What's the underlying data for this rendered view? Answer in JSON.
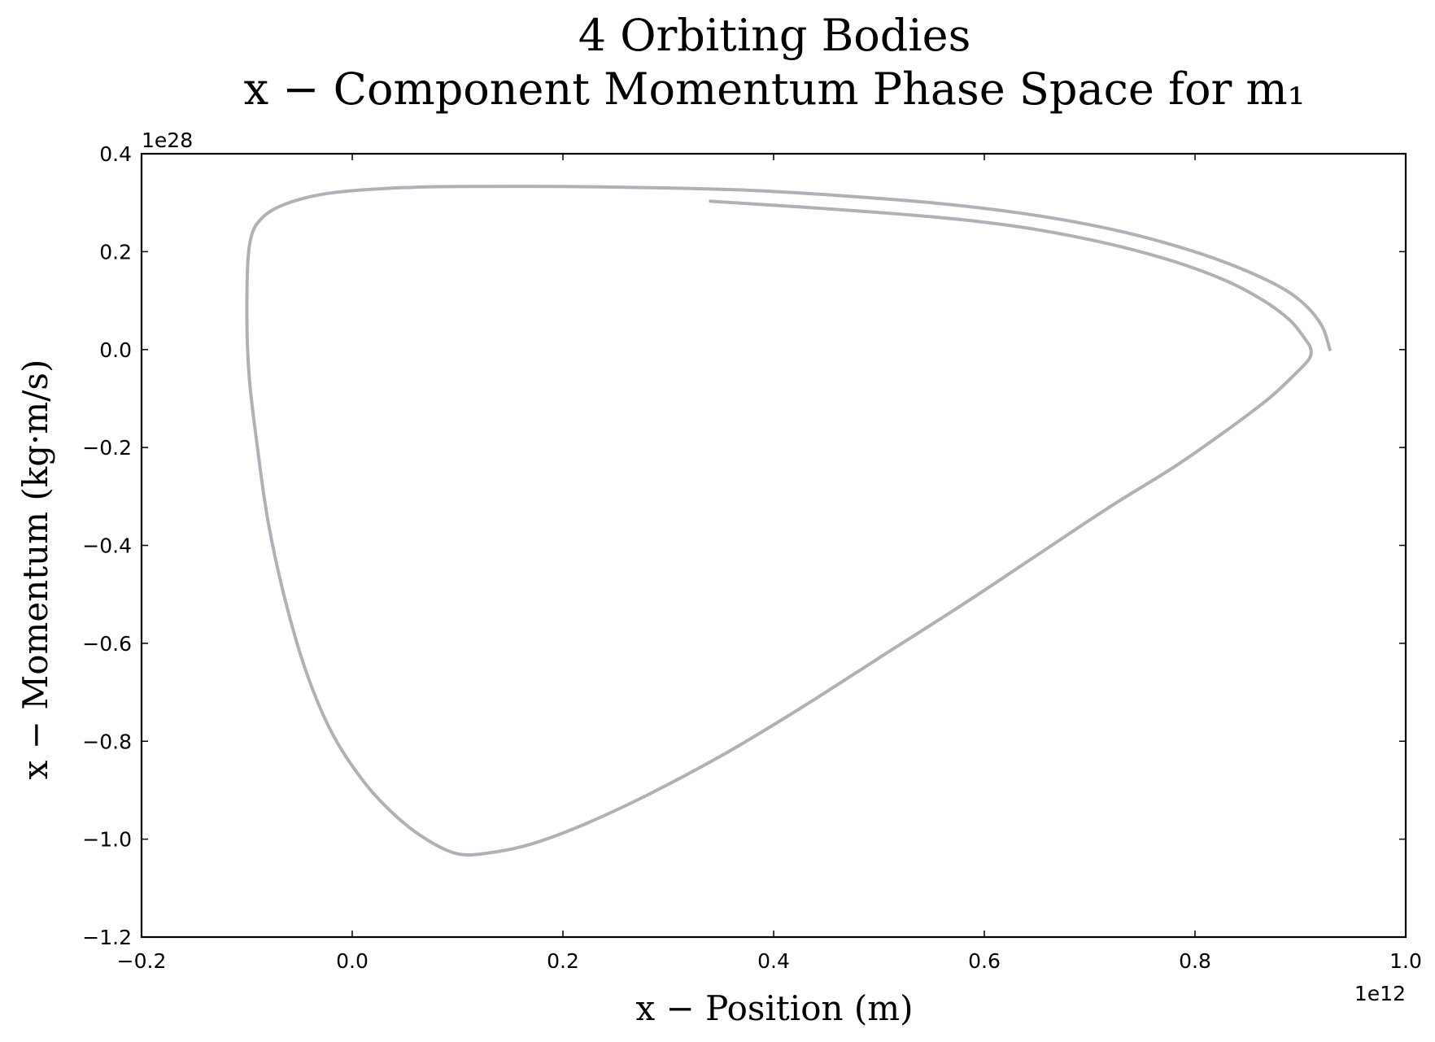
{
  "chart_data": {
    "type": "line",
    "title": "4 Orbiting Bodies",
    "subtitle": "x − Component Momentum Phase Space for m₁",
    "xlabel": "x − Position (m)",
    "ylabel": "x − Momentum (kg·m/s)",
    "x_offset_label": "1e12",
    "y_offset_label": "1e28",
    "xlim": [
      -0.2,
      1.0
    ],
    "ylim": [
      -1.2,
      0.4
    ],
    "x_ticks": [
      -0.2,
      0.0,
      0.2,
      0.4,
      0.6,
      0.8,
      1.0
    ],
    "x_tick_labels": [
      "−0.2",
      "0.0",
      "0.2",
      "0.4",
      "0.6",
      "0.8",
      "1.0"
    ],
    "y_ticks": [
      0.4,
      0.2,
      0.0,
      -0.2,
      -0.4,
      -0.6,
      -0.8,
      -1.0,
      -1.2
    ],
    "y_tick_labels": [
      "0.4",
      "0.2",
      "0.0",
      "−0.2",
      "−0.4",
      "−0.6",
      "−0.8",
      "−1.0",
      "−1.2"
    ],
    "grid": false,
    "series": [
      {
        "color": "#b0b0b8",
        "x": [
          0.928,
          0.92,
          0.9,
          0.87,
          0.82,
          0.76,
          0.7,
          0.63,
          0.55,
          0.46,
          0.38,
          0.3,
          0.2,
          0.1,
          0.04,
          -0.02,
          -0.06,
          -0.085,
          -0.097,
          -0.1,
          -0.098,
          -0.09,
          -0.08,
          -0.065,
          -0.045,
          -0.02,
          0.01,
          0.04,
          0.07,
          0.1,
          0.13,
          0.17,
          0.22,
          0.28,
          0.35,
          0.42,
          0.5,
          0.58,
          0.65,
          0.72,
          0.78,
          0.83,
          0.87,
          0.895,
          0.908,
          0.91,
          0.905,
          0.89,
          0.865,
          0.83,
          0.78,
          0.72,
          0.65,
          0.58,
          0.5,
          0.42,
          0.34
        ],
        "y": [
          0.0,
          0.05,
          0.1,
          0.14,
          0.185,
          0.225,
          0.255,
          0.28,
          0.3,
          0.315,
          0.325,
          0.33,
          0.333,
          0.333,
          0.33,
          0.32,
          0.3,
          0.27,
          0.22,
          0.1,
          -0.05,
          -0.2,
          -0.35,
          -0.5,
          -0.65,
          -0.78,
          -0.88,
          -0.95,
          -1.0,
          -1.03,
          -1.028,
          -1.01,
          -0.97,
          -0.91,
          -0.83,
          -0.74,
          -0.63,
          -0.52,
          -0.42,
          -0.32,
          -0.24,
          -0.165,
          -0.1,
          -0.05,
          -0.02,
          0.0,
          0.02,
          0.06,
          0.1,
          0.14,
          0.18,
          0.215,
          0.245,
          0.265,
          0.28,
          0.292,
          0.303
        ]
      }
    ]
  }
}
